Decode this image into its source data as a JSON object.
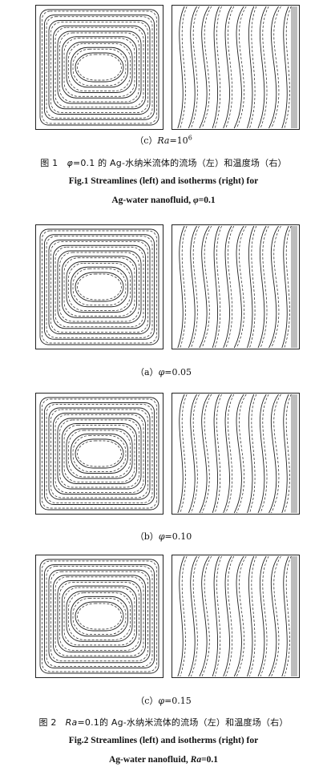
{
  "figure1": {
    "panel_label": "(c) Ra=10^6",
    "panel_prefix": "（c）",
    "panel_var": "Ra",
    "panel_eq": "=10",
    "panel_exp": "6",
    "caption_cn_prefix": "图 1",
    "caption_cn_var": "φ",
    "caption_cn_rest": "=0.1 的 Ag-水纳米流体的流场（左）和温度场（右）",
    "caption_en_line1": "Fig.1    Streamlines (left) and isotherms (right) for",
    "caption_en_line2_pre": "Ag-water nanofluid, ",
    "caption_en_line2_var": "φ",
    "caption_en_line2_post": "=0.1"
  },
  "figure2": {
    "panels": [
      {
        "prefix": "（a）",
        "var": "φ",
        "value": "=0.05"
      },
      {
        "prefix": "（b）",
        "var": "φ",
        "value": "=0.10"
      },
      {
        "prefix": "（c）",
        "var": "φ",
        "value": "=0.15"
      }
    ],
    "caption_cn_prefix": "图 2",
    "caption_cn_var": "Ra",
    "caption_cn_rest": "=0.1的 Ag-水纳米流体的流场（左）和温度场（右）",
    "caption_en_line1": "Fig.2    Streamlines (left) and isotherms (right) for",
    "caption_en_line2_pre": "Ag-water nanofluid, ",
    "caption_en_line2_var": "Ra",
    "caption_en_line2_post": "=0.1"
  }
}
